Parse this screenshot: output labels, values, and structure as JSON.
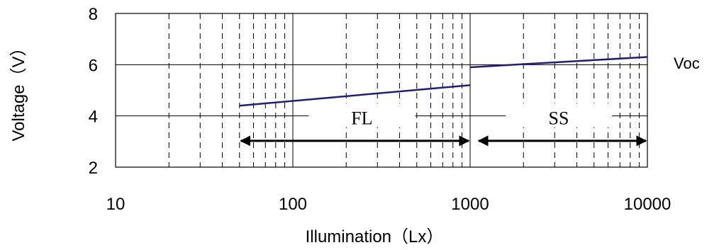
{
  "chart_data": {
    "type": "line",
    "xscale": "log",
    "xlim": [
      10,
      10000
    ],
    "ylim": [
      2,
      8
    ],
    "x_ticks": [
      "10",
      "100",
      "1000",
      "10000"
    ],
    "y_ticks": [
      "2",
      "4",
      "6",
      "8"
    ],
    "xlabel": "Illumination（Lx）",
    "ylabel": "Voltage（V）",
    "grid": true,
    "series": [
      {
        "name": "Voc",
        "segments": [
          {
            "x": [
              50,
              1000
            ],
            "y": [
              4.4,
              5.2
            ]
          },
          {
            "x": [
              1000,
              10000
            ],
            "y": [
              5.9,
              6.3
            ]
          }
        ],
        "color": "#1f1f7a"
      }
    ],
    "annotations": [
      {
        "text": "FL",
        "range": [
          50,
          1000
        ],
        "y": 3.0
      },
      {
        "text": "SS",
        "range": [
          1000,
          10000
        ],
        "y": 3.0
      }
    ]
  }
}
